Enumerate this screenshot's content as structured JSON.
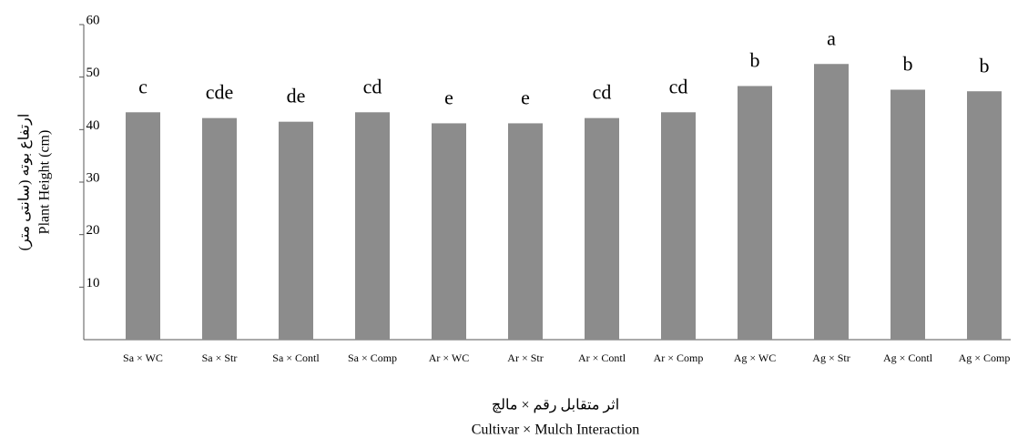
{
  "chart_data": {
    "type": "bar",
    "categories": [
      "Sa × WC",
      "Sa × Str",
      "Sa × Contl",
      "Sa × Comp",
      "Ar × WC",
      "Ar × Str",
      "Ar × Contl",
      "Ar × Comp",
      "Ag × WC",
      "Ag × Str",
      "Ag × Contl",
      "Ag × Comp"
    ],
    "values": [
      43.3,
      42.2,
      41.5,
      43.3,
      41.2,
      41.2,
      42.2,
      43.3,
      48.3,
      52.5,
      47.6,
      47.3
    ],
    "annotations": [
      "c",
      "cde",
      "de",
      "cd",
      "e",
      "e",
      "cd",
      "cd",
      "b",
      "a",
      "b",
      "b"
    ],
    "color": "#8c8c8c",
    "ylim": [
      0,
      60
    ],
    "yticks": [
      10,
      20,
      30,
      40,
      50,
      60
    ],
    "y_label": [
      "ارتفاع بوته (سانتی متر)",
      "Plant Height (cm)"
    ],
    "x_label": [
      "اثر متقابل رقم × مالچ",
      "Cultivar × Mulch Interaction"
    ]
  }
}
